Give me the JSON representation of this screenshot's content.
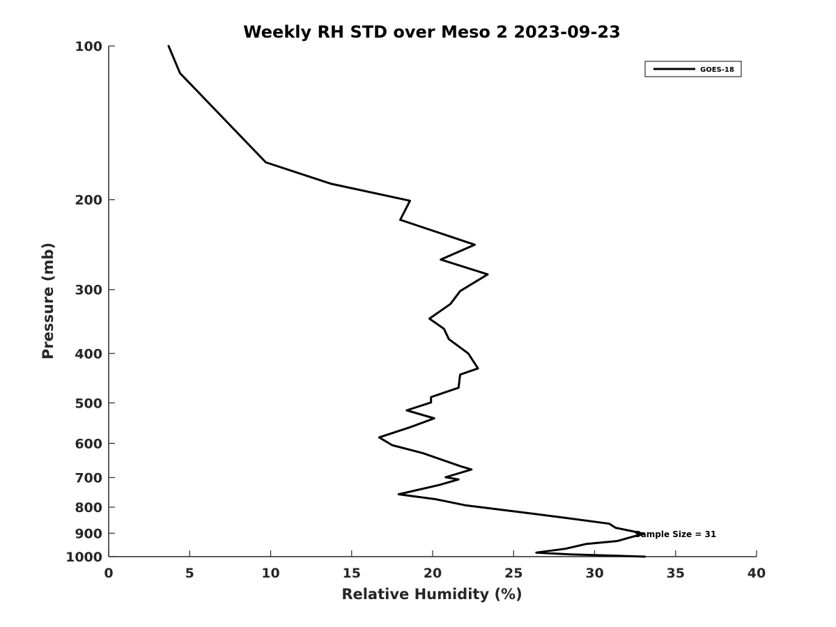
{
  "chart_data": {
    "type": "line",
    "title": "Weekly RH STD over Meso 2 2023-09-23",
    "xlabel": "Relative Humidity (%)",
    "ylabel": "Pressure (mb)",
    "xlim": [
      0,
      40
    ],
    "ylim": [
      100,
      1000
    ],
    "yscale": "log",
    "y_reversed": true,
    "xticks": [
      0,
      5,
      10,
      15,
      20,
      25,
      30,
      35,
      40
    ],
    "yticks": [
      100,
      200,
      300,
      400,
      500,
      600,
      700,
      800,
      900,
      1000
    ],
    "grid": false,
    "legend": {
      "position": "top-right",
      "entries": [
        "GOES-18"
      ]
    },
    "annotation": "Sample Size = 31",
    "series": [
      {
        "name": "GOES-18",
        "color": "#000000",
        "x": [
          3.7,
          4.4,
          9.7,
          13.7,
          18.6,
          18.0,
          22.6,
          20.5,
          23.4,
          21.7,
          21.1,
          19.8,
          20.7,
          21.0,
          22.2,
          22.8,
          21.7,
          21.6,
          19.9,
          19.9,
          18.4,
          20.1,
          18.6,
          16.7,
          17.5,
          19.4,
          21.7,
          22.4,
          20.8,
          21.6,
          20.4,
          17.9,
          20.2,
          22.0,
          24.6,
          28.0,
          30.9,
          31.3,
          32.8,
          33.0,
          32.3,
          31.4,
          29.5,
          28.2,
          26.4,
          28.5,
          33.1
        ],
        "y": [
          100,
          113,
          169,
          186,
          201,
          219,
          245,
          262,
          280,
          302,
          320,
          342,
          358,
          375,
          400,
          428,
          440,
          467,
          487,
          499,
          517,
          536,
          558,
          584,
          605,
          627,
          665,
          675,
          699,
          706,
          724,
          755,
          772,
          793,
          812,
          838,
          862,
          878,
          898,
          903,
          915,
          932,
          944,
          965,
          982,
          990,
          1000
        ]
      }
    ]
  }
}
